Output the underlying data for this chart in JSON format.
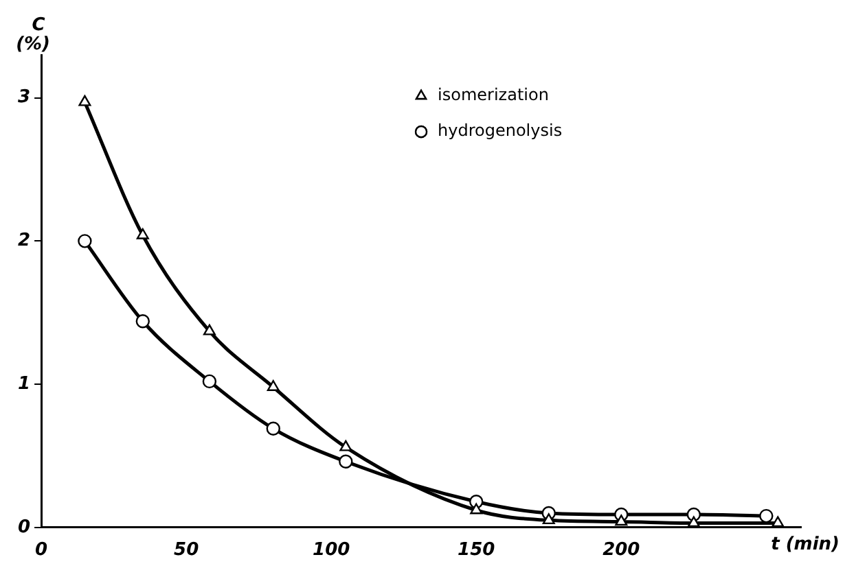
{
  "chart_data": {
    "type": "line",
    "xlabel": "t (min)",
    "ylabel": "C (%)",
    "xlim": [
      0,
      262
    ],
    "ylim": [
      0,
      3.3
    ],
    "xticks": [
      0,
      50,
      100,
      150,
      200
    ],
    "yticks": [
      0,
      1,
      2,
      3
    ],
    "grid": false,
    "legend": "top",
    "line_style": "solid",
    "series": [
      {
        "name": "isomerization",
        "color": "#000000",
        "marker": "triangle",
        "x": [
          15,
          35,
          58,
          80,
          105,
          150,
          175,
          200,
          225,
          254
        ],
        "values": [
          2.97,
          2.04,
          1.37,
          0.98,
          0.56,
          0.12,
          0.05,
          0.04,
          0.03,
          0.03
        ]
      },
      {
        "name": "hydrogenolysis",
        "color": "#000000",
        "marker": "circle",
        "x": [
          15,
          35,
          58,
          80,
          105,
          150,
          175,
          200,
          225,
          250
        ],
        "values": [
          2.0,
          1.44,
          1.02,
          0.69,
          0.46,
          0.18,
          0.1,
          0.09,
          0.09,
          0.08
        ]
      }
    ]
  }
}
